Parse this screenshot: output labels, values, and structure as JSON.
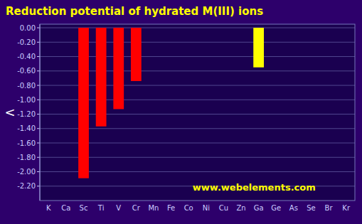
{
  "chart_data": {
    "type": "bar",
    "title": "Reduction potential of hydrated M(III) ions",
    "ylabel": "<",
    "annotations": [
      "www.webelements.com"
    ],
    "categories": [
      "K",
      "Ca",
      "Sc",
      "Ti",
      "V",
      "Cr",
      "Mn",
      "Fe",
      "Co",
      "Ni",
      "Cu",
      "Zn",
      "Ga",
      "Ge",
      "As",
      "Se",
      "Br",
      "Kr"
    ],
    "values": [
      0.0,
      0.0,
      -2.09,
      -1.37,
      -1.13,
      -0.74,
      0.0,
      0.0,
      0.0,
      0.0,
      0.0,
      0.0,
      -0.55,
      0.0,
      0.0,
      0.0,
      0.0,
      0.0
    ],
    "colors": [
      "#aaaaaa",
      "#aaaaaa",
      "#ff0000",
      "#ff0000",
      "#ff0000",
      "#ff0000",
      "#aaaaaa",
      "#aaaaaa",
      "#aaaaaa",
      "#aaaaaa",
      "#aaaaaa",
      "#aaaaaa",
      "#ffff00",
      "#aaaaaa",
      "#aaaaaa",
      "#aaaaaa",
      "#aaaaaa",
      "#aaaaaa"
    ],
    "ylim": [
      -2.4,
      0.05
    ],
    "yticks": [
      {
        "value": 0.0,
        "label": "0.00"
      },
      {
        "value": -0.2,
        "label": "-0.20"
      },
      {
        "value": -0.4,
        "label": "-0.40"
      },
      {
        "value": -0.6,
        "label": "-0.60"
      },
      {
        "value": -0.8,
        "label": "-0.80"
      },
      {
        "value": -1.0,
        "label": "-1.00"
      },
      {
        "value": -1.2,
        "label": "-1.20"
      },
      {
        "value": -1.4,
        "label": "-1.40"
      },
      {
        "value": -1.6,
        "label": "-1.60"
      },
      {
        "value": -1.8,
        "label": "-1.80"
      },
      {
        "value": -2.0,
        "label": "-2.00"
      },
      {
        "value": -2.2,
        "label": "-2.20"
      }
    ],
    "grid": true
  }
}
